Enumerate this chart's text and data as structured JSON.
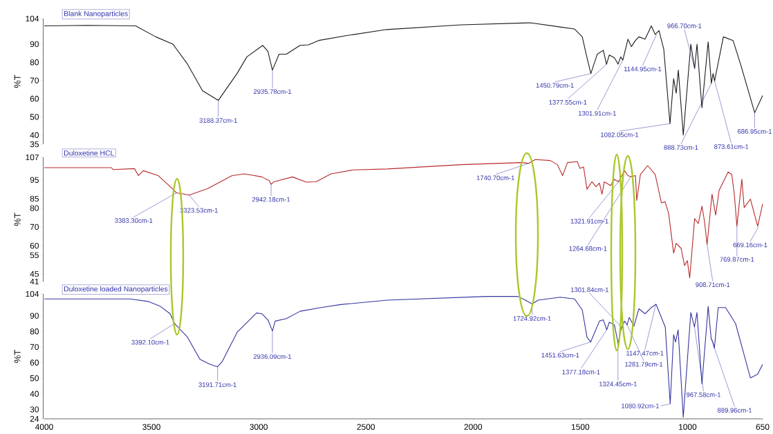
{
  "chart_data": [
    {
      "type": "line",
      "ylabel": "%T",
      "xlim": [
        4000,
        650
      ],
      "ylim": [
        35,
        104
      ],
      "yticks": [
        35,
        40,
        50,
        60,
        70,
        80,
        90,
        104
      ],
      "tick_labels": "y",
      "series": [
        {
          "name": "Blank Nanoparticles",
          "color": "#1a1a1a",
          "x": [
            4000,
            3800,
            3574,
            3480,
            3400,
            3332,
            3262,
            3188,
            3100,
            3055,
            2981,
            2957,
            2936,
            2905,
            2871,
            2807,
            2768,
            2720,
            2594,
            2404,
            2056,
            1733,
            1594,
            1527,
            1491,
            1473,
            1451,
            1421,
            1393,
            1378,
            1365,
            1341,
            1324,
            1312,
            1302,
            1278,
            1262,
            1243,
            1227,
            1198,
            1169,
            1151,
            1133,
            1111,
            1082,
            1065,
            1053,
            1043,
            1020,
            985,
            967,
            956,
            933,
            904,
            889,
            881,
            874,
            833,
            788,
            753,
            687,
            650
          ],
          "values": [
            100,
            100.3,
            100,
            94,
            90,
            79,
            64.4,
            59.1,
            74,
            83,
            89.3,
            86,
            75.7,
            84.5,
            84.5,
            89.3,
            89.6,
            92,
            94.6,
            98,
            100.6,
            101.7,
            99.4,
            98.3,
            94,
            84.5,
            73.8,
            84.5,
            86.6,
            78.9,
            84,
            82.5,
            79,
            83,
            81.2,
            92.7,
            88.6,
            92,
            94,
            92.7,
            100,
            95.3,
            97.4,
            87.2,
            46.3,
            71,
            63,
            75.7,
            40,
            90,
            76.5,
            90,
            55,
            91.2,
            68.5,
            73.8,
            69.7,
            94,
            92,
            79,
            52.3,
            61.7
          ]
        }
      ],
      "annotations": [
        {
          "text": "3188.37cm-1",
          "x": 3188.37,
          "y": 59.1
        },
        {
          "text": "2935.78cm-1",
          "x": 2935.78,
          "y": 75.7
        },
        {
          "text": "1450.79cm-1",
          "x": 1450.79,
          "y": 73.8
        },
        {
          "text": "1377.55cm-1",
          "x": 1377.55,
          "y": 78.9
        },
        {
          "text": "1301.91cm-1",
          "x": 1301.91,
          "y": 81.2
        },
        {
          "text": "1144.95cm-1",
          "x": 1144.95,
          "y": 95.3
        },
        {
          "text": "966.70cm-1",
          "x": 966.7,
          "y": 76.5
        },
        {
          "text": "1082.05cm-1",
          "x": 1082.05,
          "y": 46.3
        },
        {
          "text": "888.73cm-1",
          "x": 888.73,
          "y": 68.5
        },
        {
          "text": "873.61cm-1",
          "x": 873.61,
          "y": 69.7
        },
        {
          "text": "686.95cm-1",
          "x": 686.95,
          "y": 52.3
        }
      ]
    },
    {
      "type": "line",
      "ylabel": "%T",
      "xlim": [
        4000,
        650
      ],
      "ylim": [
        41,
        107
      ],
      "yticks": [
        41,
        45,
        55,
        60,
        70,
        80,
        85,
        95,
        107
      ],
      "tick_labels": "y",
      "series": [
        {
          "name": "Duloxetine HCL",
          "color": "#b8282a",
          "x": [
            4000,
            3687,
            3679,
            3579,
            3561,
            3538,
            3469,
            3400,
            3383,
            3350,
            3324,
            3239,
            3124,
            3066,
            2985,
            2951,
            2942,
            2929,
            2842,
            2778,
            2733,
            2663,
            2560,
            2400,
            2056,
            1778,
            1741,
            1710,
            1640,
            1607,
            1583,
            1560,
            1514,
            1502,
            1485,
            1469,
            1446,
            1427,
            1411,
            1399,
            1388,
            1359,
            1341,
            1322,
            1294,
            1278,
            1265,
            1243,
            1237,
            1220,
            1186,
            1151,
            1122,
            1105,
            1088,
            1065,
            1053,
            1030,
            1014,
            1001,
            990,
            967,
            950,
            933,
            921,
            909,
            886,
            869,
            853,
            811,
            794,
            782,
            770,
            747,
            736,
            707,
            673,
            650
          ],
          "values": [
            101.5,
            101.5,
            100.5,
            101,
            97.3,
            99.9,
            97.3,
            90.1,
            88.1,
            87.5,
            86.9,
            90.3,
            97.3,
            98.2,
            96.6,
            94.6,
            92.7,
            94,
            96.6,
            93.8,
            94,
            98.2,
            100.3,
            100.8,
            103.1,
            104.2,
            103.8,
            105.8,
            105.3,
            103.1,
            97.3,
            104.2,
            104.7,
            101.1,
            101.9,
            90.1,
            94,
            91.4,
            93.3,
            87.4,
            94,
            92,
            95.3,
            94,
            99.9,
            97.3,
            96.7,
            97.3,
            84.1,
            97.9,
            102.6,
            97.9,
            82.8,
            83.4,
            77,
            56.1,
            61.3,
            58.6,
            49.5,
            52.1,
            42.9,
            74.4,
            71.8,
            81,
            73,
            60.6,
            87.4,
            76.3,
            89.4,
            99.2,
            97.9,
            87.4,
            70.4,
            95.3,
            80.3,
            84.8,
            70.4,
            82.2
          ]
        }
      ],
      "annotations": [
        {
          "text": "3383.30cm-1",
          "x": 3383.3,
          "y": 88.1
        },
        {
          "text": "3323.53cm-1",
          "x": 3323.53,
          "y": 86.9
        },
        {
          "text": "2942.18cm-1",
          "x": 2942.18,
          "y": 92.7
        },
        {
          "text": "1740.70cm-1",
          "x": 1740.7,
          "y": 103.8
        },
        {
          "text": "1321.91cm-1",
          "x": 1321.91,
          "y": 94
        },
        {
          "text": "1264.68cm-1",
          "x": 1264.68,
          "y": 96.7
        },
        {
          "text": "908.71cm-1",
          "x": 908.71,
          "y": 60.6
        },
        {
          "text": "769.87cm-1",
          "x": 769.87,
          "y": 70.4
        },
        {
          "text": "669.16cm-1",
          "x": 669.16,
          "y": 70
        }
      ]
    },
    {
      "type": "line",
      "ylabel": "%T",
      "xlim": [
        4000,
        650
      ],
      "xticks": [
        4000,
        3500,
        3000,
        2500,
        2000,
        1500,
        1000,
        650
      ],
      "ylim": [
        24,
        104
      ],
      "yticks": [
        24,
        30,
        40,
        50,
        60,
        70,
        80,
        90,
        104
      ],
      "series": [
        {
          "name": "Duloxetine loaded Nanoparticles",
          "color": "#3434a0",
          "x": [
            4000,
            3600,
            3516,
            3458,
            3413,
            3392,
            3332,
            3274,
            3227,
            3192,
            3171,
            3100,
            3010,
            2985,
            2957,
            2936,
            2923,
            2871,
            2807,
            2710,
            2617,
            2400,
            1939,
            1791,
            1756,
            1725,
            1697,
            1594,
            1527,
            1491,
            1469,
            1452,
            1411,
            1393,
            1377,
            1365,
            1341,
            1324,
            1309,
            1294,
            1282,
            1272,
            1250,
            1227,
            1198,
            1169,
            1147,
            1104,
            1081,
            1065,
            1056,
            1044,
            1020,
            985,
            968,
            956,
            933,
            904,
            890,
            882,
            875,
            857,
            823,
            776,
            707,
            673,
            650
          ],
          "values": [
            100.8,
            100.8,
            99.2,
            96,
            91.3,
            85,
            76.3,
            62.1,
            58.9,
            57.4,
            60.5,
            79.5,
            91.8,
            91.3,
            87.4,
            80.3,
            86.6,
            88.2,
            92.9,
            95.3,
            97.2,
            100,
            102.4,
            102.4,
            100,
            97.6,
            100,
            101.9,
            100.8,
            93.7,
            76.3,
            73.2,
            86.6,
            87.4,
            81,
            85.9,
            84.2,
            72.4,
            81.9,
            86.6,
            84.2,
            89,
            83.4,
            94.5,
            91.3,
            95.3,
            97.4,
            82.8,
            33.6,
            77.9,
            73.2,
            81,
            25,
            92.1,
            82.8,
            92.1,
            46.3,
            96,
            75.5,
            73.2,
            69.2,
            95.3,
            95.3,
            85,
            50.2,
            52.6,
            58.9
          ]
        }
      ],
      "annotations": [
        {
          "text": "3392.10cm-1",
          "x": 3392.1,
          "y": 85
        },
        {
          "text": "3191.71cm-1",
          "x": 3191.71,
          "y": 57.4
        },
        {
          "text": "2936.09cm-1",
          "x": 2936.09,
          "y": 80.3
        },
        {
          "text": "1724.92cm-1",
          "x": 1724.92,
          "y": 97.6
        },
        {
          "text": "1451.63cm-1",
          "x": 1451.63,
          "y": 73.2
        },
        {
          "text": "1377.18cm-1",
          "x": 1377.18,
          "y": 81
        },
        {
          "text": "1324.45cm-1",
          "x": 1324.45,
          "y": 72.4
        },
        {
          "text": "1301.84cm-1",
          "x": 1301.84,
          "y": 81.9
        },
        {
          "text": "1147.47cm-1",
          "x": 1147.47,
          "y": 97.4
        },
        {
          "text": "1281.79cm-1",
          "x": 1281.79,
          "y": 84.2
        },
        {
          "text": "1080.92cm-1",
          "x": 1080.92,
          "y": 33.6
        },
        {
          "text": "967.58cm-1",
          "x": 967.58,
          "y": 82.8
        },
        {
          "text": "889.96cm-1",
          "x": 889.96,
          "y": 75.5
        }
      ]
    }
  ]
}
